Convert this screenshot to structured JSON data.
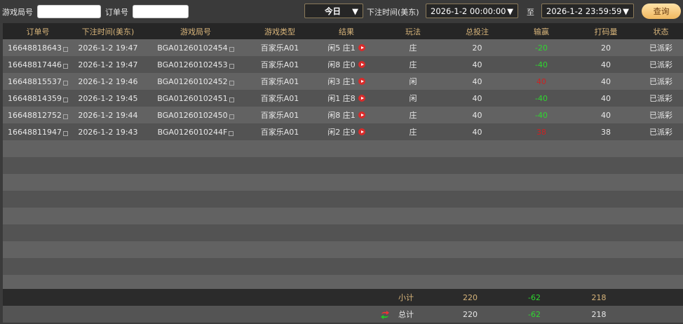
{
  "toolbar": {
    "game_round_label": "游戏局号",
    "game_round_value": "",
    "order_label": "订单号",
    "order_value": "",
    "period": "今日",
    "time_label": "下注时间(美东)",
    "start": "2026-1-2 00:00:00",
    "to_label": "至",
    "end": "2026-1-2 23:59:59",
    "query_label": "查询"
  },
  "columns": [
    "订单号",
    "下注时间(美东)",
    "游戏局号",
    "游戏类型",
    "结果",
    "玩法",
    "总投注",
    "输赢",
    "打码量",
    "状态"
  ],
  "rows": [
    {
      "order": "16648818643",
      "time": "2026-1-2 19:47",
      "round": "BGA01260102454",
      "type": "百家乐A01",
      "result": "闲5 庄1",
      "play": "庄",
      "bet": "20",
      "win": "-20",
      "win_color": "green",
      "valid": "20",
      "status": "已派彩"
    },
    {
      "order": "16648817446",
      "time": "2026-1-2 19:47",
      "round": "BGA01260102453",
      "type": "百家乐A01",
      "result": "闲8 庄0",
      "play": "庄",
      "bet": "40",
      "win": "-40",
      "win_color": "green",
      "valid": "40",
      "status": "已派彩"
    },
    {
      "order": "16648815537",
      "time": "2026-1-2 19:46",
      "round": "BGA01260102452",
      "type": "百家乐A01",
      "result": "闲3 庄1",
      "play": "闲",
      "bet": "40",
      "win": "40",
      "win_color": "red",
      "valid": "40",
      "status": "已派彩"
    },
    {
      "order": "16648814359",
      "time": "2026-1-2 19:45",
      "round": "BGA01260102451",
      "type": "百家乐A01",
      "result": "闲1 庄8",
      "play": "闲",
      "bet": "40",
      "win": "-40",
      "win_color": "green",
      "valid": "40",
      "status": "已派彩"
    },
    {
      "order": "16648812752",
      "time": "2026-1-2 19:44",
      "round": "BGA01260102450",
      "type": "百家乐A01",
      "result": "闲8 庄1",
      "play": "庄",
      "bet": "40",
      "win": "-40",
      "win_color": "green",
      "valid": "40",
      "status": "已派彩"
    },
    {
      "order": "16648811947",
      "time": "2026-1-2 19:43",
      "round": "BGA0126010244F",
      "type": "百家乐A01",
      "result": "闲2 庄9",
      "play": "庄",
      "bet": "40",
      "win": "38",
      "win_color": "red",
      "valid": "38",
      "status": "已派彩"
    }
  ],
  "subtotal": {
    "label": "小计",
    "bet": "220",
    "win": "-62",
    "valid": "218"
  },
  "total": {
    "label": "总计",
    "bet": "220",
    "win": "-62",
    "valid": "218"
  },
  "colors": {
    "header_text": "#d7b47a",
    "loss": "#2fd62f",
    "win": "#cc2222",
    "button": "#f0b860"
  }
}
